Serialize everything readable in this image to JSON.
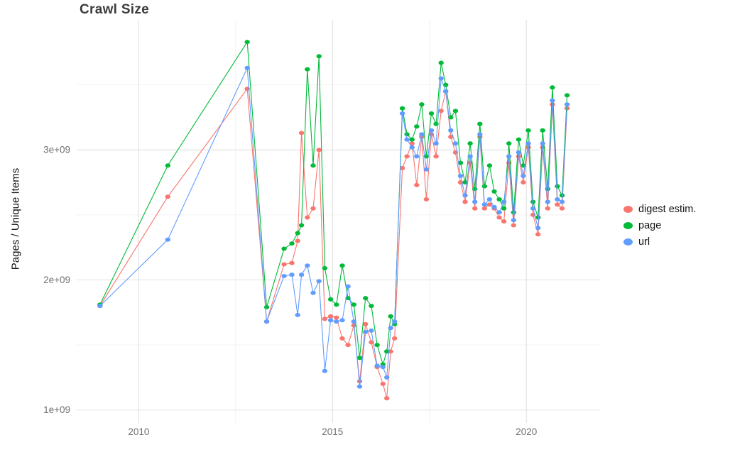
{
  "title": "Crawl Size",
  "chart_data": {
    "type": "line",
    "title": "Crawl Size",
    "xlabel": "",
    "ylabel": "Pages / Unique Items",
    "grid": true,
    "legend_position": "right",
    "xlim": [
      2008.4,
      2021.9
    ],
    "ylim": [
      900000000.0,
      4000000000.0
    ],
    "x_ticks": [
      2010,
      2015,
      2020
    ],
    "x_tick_labels": [
      "2010",
      "2015",
      "2020"
    ],
    "x_minor_ticks": [
      2012.5,
      2017.5
    ],
    "y_ticks": [
      1000000000.0,
      2000000000.0,
      3000000000.0
    ],
    "y_tick_labels": [
      "1e+09",
      "2e+09",
      "3e+09"
    ],
    "y_minor_ticks": [
      1500000000.0,
      2500000000.0,
      3500000000.0
    ],
    "x": [
      2009.0,
      2010.75,
      2012.8,
      2013.3,
      2013.75,
      2013.95,
      2014.1,
      2014.2,
      2014.35,
      2014.5,
      2014.65,
      2014.8,
      2014.95,
      2015.1,
      2015.25,
      2015.4,
      2015.55,
      2015.7,
      2015.85,
      2016.0,
      2016.15,
      2016.3,
      2016.4,
      2016.5,
      2016.6,
      2016.8,
      2016.92,
      2017.05,
      2017.17,
      2017.3,
      2017.42,
      2017.55,
      2017.67,
      2017.8,
      2017.92,
      2018.05,
      2018.17,
      2018.3,
      2018.42,
      2018.55,
      2018.67,
      2018.8,
      2018.92,
      2019.05,
      2019.17,
      2019.3,
      2019.42,
      2019.55,
      2019.67,
      2019.8,
      2019.92,
      2020.05,
      2020.17,
      2020.3,
      2020.42,
      2020.55,
      2020.67,
      2020.8,
      2020.92,
      2021.05
    ],
    "series": [
      {
        "name": "digest estim.",
        "color": "#F8766D",
        "values": [
          1800000000.0,
          2640000000.0,
          3470000000.0,
          1680000000.0,
          2120000000.0,
          2130000000.0,
          2300000000.0,
          3130000000.0,
          2480000000.0,
          2550000000.0,
          3000000000.0,
          1700000000.0,
          1720000000.0,
          1710000000.0,
          1550000000.0,
          1500000000.0,
          1650000000.0,
          1220000000.0,
          1660000000.0,
          1520000000.0,
          1330000000.0,
          1200000000.0,
          1090000000.0,
          1450000000.0,
          1550000000.0,
          2860000000.0,
          2950000000.0,
          3050000000.0,
          2730000000.0,
          3100000000.0,
          2620000000.0,
          3120000000.0,
          2950000000.0,
          3300000000.0,
          3450000000.0,
          3100000000.0,
          2980000000.0,
          2750000000.0,
          2600000000.0,
          2900000000.0,
          2550000000.0,
          3100000000.0,
          2550000000.0,
          2580000000.0,
          2550000000.0,
          2480000000.0,
          2450000000.0,
          2900000000.0,
          2420000000.0,
          2950000000.0,
          2750000000.0,
          3020000000.0,
          2500000000.0,
          2350000000.0,
          3020000000.0,
          2550000000.0,
          3350000000.0,
          2580000000.0,
          2550000000.0,
          3320000000.0
        ]
      },
      {
        "name": "page",
        "color": "#00BA38",
        "values": [
          1810000000.0,
          2880000000.0,
          3830000000.0,
          1790000000.0,
          2240000000.0,
          2280000000.0,
          2360000000.0,
          2420000000.0,
          3620000000.0,
          2880000000.0,
          3720000000.0,
          2090000000.0,
          1850000000.0,
          1810000000.0,
          2110000000.0,
          1860000000.0,
          1810000000.0,
          1400000000.0,
          1860000000.0,
          1800000000.0,
          1500000000.0,
          1350000000.0,
          1450000000.0,
          1720000000.0,
          1660000000.0,
          3320000000.0,
          3120000000.0,
          3080000000.0,
          3180000000.0,
          3350000000.0,
          2950000000.0,
          3280000000.0,
          3200000000.0,
          3670000000.0,
          3500000000.0,
          3250000000.0,
          3300000000.0,
          2900000000.0,
          2750000000.0,
          3050000000.0,
          2700000000.0,
          3200000000.0,
          2720000000.0,
          2880000000.0,
          2680000000.0,
          2620000000.0,
          2550000000.0,
          3050000000.0,
          2520000000.0,
          3080000000.0,
          2880000000.0,
          3150000000.0,
          2600000000.0,
          2480000000.0,
          3150000000.0,
          2700000000.0,
          3480000000.0,
          2720000000.0,
          2650000000.0,
          3420000000.0
        ]
      },
      {
        "name": "url",
        "color": "#619CFF",
        "values": [
          1800000000.0,
          2310000000.0,
          3630000000.0,
          1680000000.0,
          2030000000.0,
          2040000000.0,
          1730000000.0,
          2040000000.0,
          2110000000.0,
          1900000000.0,
          1990000000.0,
          1300000000.0,
          1690000000.0,
          1680000000.0,
          1690000000.0,
          1950000000.0,
          1680000000.0,
          1180000000.0,
          1600000000.0,
          1610000000.0,
          1340000000.0,
          1330000000.0,
          1250000000.0,
          1630000000.0,
          1680000000.0,
          3280000000.0,
          3080000000.0,
          3020000000.0,
          2950000000.0,
          3120000000.0,
          2850000000.0,
          3150000000.0,
          3050000000.0,
          3550000000.0,
          3450000000.0,
          3150000000.0,
          3050000000.0,
          2800000000.0,
          2650000000.0,
          2950000000.0,
          2600000000.0,
          3120000000.0,
          2580000000.0,
          2620000000.0,
          2560000000.0,
          2520000000.0,
          2600000000.0,
          2950000000.0,
          2460000000.0,
          2980000000.0,
          2800000000.0,
          3050000000.0,
          2550000000.0,
          2400000000.0,
          3050000000.0,
          2600000000.0,
          3380000000.0,
          2620000000.0,
          2600000000.0,
          3350000000.0
        ]
      }
    ]
  }
}
